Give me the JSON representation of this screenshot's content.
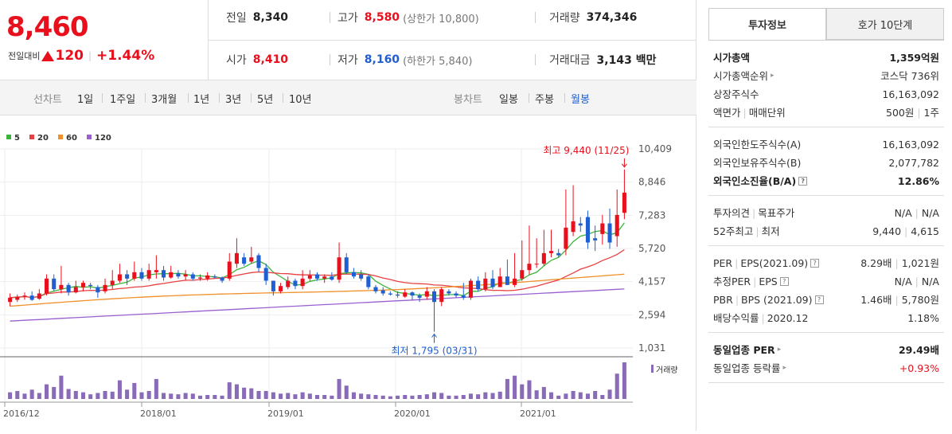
{
  "quote": {
    "price": "8,460",
    "change_label": "전일대비",
    "change_amount": "120",
    "change_pct": "+1.44%",
    "prev_close_label": "전일",
    "prev_close": "8,340",
    "high_label": "고가",
    "high": "8,580",
    "upper_limit": "(상한가 10,800)",
    "volume_label": "거래량",
    "volume": "374,346",
    "open_label": "시가",
    "open": "8,410",
    "low_label": "저가",
    "low": "8,160",
    "lower_limit": "(하한가 5,840)",
    "amount_label": "거래대금",
    "amount": "3,143 백만"
  },
  "period_bar": {
    "line_label": "선차트",
    "line_periods": [
      "1일",
      "1주일",
      "3개월",
      "1년",
      "3년",
      "5년",
      "10년"
    ],
    "candle_label": "봉차트",
    "candle_periods": [
      "일봉",
      "주봉",
      "월봉"
    ],
    "active_candle": "월봉"
  },
  "chart_data": {
    "type": "candlestick",
    "legend": [
      {
        "name": "5",
        "color": "#3cb43c"
      },
      {
        "name": "20",
        "color": "#e84040"
      },
      {
        "name": "60",
        "color": "#f0902a"
      },
      {
        "name": "120",
        "color": "#9a5fd0"
      }
    ],
    "y_ticks": [
      "10,409",
      "8,846",
      "7,283",
      "5,720",
      "4,157",
      "2,594",
      "1,031"
    ],
    "ylim": [
      1031,
      10409
    ],
    "x_ticks": [
      "2016/12",
      "2018/01",
      "2019/01",
      "2020/01",
      "2021/01"
    ],
    "max_note": "최고 9,440 (11/25)",
    "min_note": "최저 1,795 (03/31)",
    "volume_label": "거래량",
    "candles": [
      {
        "o": 3200,
        "c": 3400,
        "h": 3600,
        "l": 3000,
        "v": 0.1
      },
      {
        "o": 3300,
        "c": 3450,
        "h": 3550,
        "l": 3200,
        "v": 0.12
      },
      {
        "o": 3450,
        "c": 3500,
        "h": 3650,
        "l": 3300,
        "v": 0.08
      },
      {
        "o": 3500,
        "c": 3300,
        "h": 3700,
        "l": 3250,
        "v": 0.14
      },
      {
        "o": 3350,
        "c": 3600,
        "h": 3800,
        "l": 3300,
        "v": 0.09
      },
      {
        "o": 3600,
        "c": 4300,
        "h": 4500,
        "l": 3500,
        "v": 0.22
      },
      {
        "o": 4300,
        "c": 3800,
        "h": 4500,
        "l": 3700,
        "v": 0.18
      },
      {
        "o": 3800,
        "c": 4000,
        "h": 4900,
        "l": 3600,
        "v": 0.35
      },
      {
        "o": 4000,
        "c": 3650,
        "h": 4100,
        "l": 3500,
        "v": 0.15
      },
      {
        "o": 3650,
        "c": 3900,
        "h": 4200,
        "l": 3600,
        "v": 0.12
      },
      {
        "o": 3900,
        "c": 4100,
        "h": 4200,
        "l": 3700,
        "v": 0.1
      },
      {
        "o": 4000,
        "c": 3950,
        "h": 4100,
        "l": 3800,
        "v": 0.07
      },
      {
        "o": 3900,
        "c": 3650,
        "h": 4000,
        "l": 3400,
        "v": 0.09
      },
      {
        "o": 3700,
        "c": 4000,
        "h": 4300,
        "l": 3600,
        "v": 0.12
      },
      {
        "o": 4000,
        "c": 4200,
        "h": 4700,
        "l": 3800,
        "v": 0.11
      },
      {
        "o": 4200,
        "c": 4500,
        "h": 5000,
        "l": 4100,
        "v": 0.28
      },
      {
        "o": 4500,
        "c": 4300,
        "h": 4700,
        "l": 4000,
        "v": 0.14
      },
      {
        "o": 4300,
        "c": 4600,
        "h": 5100,
        "l": 4200,
        "v": 0.24
      },
      {
        "o": 4600,
        "c": 4300,
        "h": 4800,
        "l": 4200,
        "v": 0.1
      },
      {
        "o": 4300,
        "c": 4700,
        "h": 5000,
        "l": 4200,
        "v": 0.12
      },
      {
        "o": 4600,
        "c": 4700,
        "h": 5400,
        "l": 4300,
        "v": 0.3
      },
      {
        "o": 4700,
        "c": 4350,
        "h": 4900,
        "l": 4200,
        "v": 0.09
      },
      {
        "o": 4350,
        "c": 4600,
        "h": 4900,
        "l": 4300,
        "v": 0.08
      },
      {
        "o": 4550,
        "c": 4400,
        "h": 4700,
        "l": 4300,
        "v": 0.07
      },
      {
        "o": 4400,
        "c": 4500,
        "h": 4700,
        "l": 4200,
        "v": 0.09
      },
      {
        "o": 4500,
        "c": 4300,
        "h": 4600,
        "l": 4200,
        "v": 0.08
      },
      {
        "o": 4300,
        "c": 4350,
        "h": 4500,
        "l": 4200,
        "v": 0.05
      },
      {
        "o": 4300,
        "c": 4450,
        "h": 4600,
        "l": 4200,
        "v": 0.06
      },
      {
        "o": 4400,
        "c": 4350,
        "h": 4500,
        "l": 4300,
        "v": 0.06
      },
      {
        "o": 4350,
        "c": 4200,
        "h": 4400,
        "l": 4100,
        "v": 0.05
      },
      {
        "o": 4300,
        "c": 5100,
        "h": 5500,
        "l": 4200,
        "v": 0.25
      },
      {
        "o": 5000,
        "c": 5500,
        "h": 6200,
        "l": 4800,
        "v": 0.22
      },
      {
        "o": 5300,
        "c": 5000,
        "h": 5500,
        "l": 4900,
        "v": 0.17
      },
      {
        "o": 5100,
        "c": 5300,
        "h": 5800,
        "l": 5000,
        "v": 0.16
      },
      {
        "o": 5400,
        "c": 4800,
        "h": 5500,
        "l": 4600,
        "v": 0.12
      },
      {
        "o": 4800,
        "c": 4200,
        "h": 5000,
        "l": 4000,
        "v": 0.12
      },
      {
        "o": 4200,
        "c": 3700,
        "h": 4200,
        "l": 3500,
        "v": 0.1
      },
      {
        "o": 3700,
        "c": 3950,
        "h": 4100,
        "l": 3600,
        "v": 0.08
      },
      {
        "o": 3900,
        "c": 4200,
        "h": 4400,
        "l": 3800,
        "v": 0.09
      },
      {
        "o": 4200,
        "c": 3950,
        "h": 4300,
        "l": 3800,
        "v": 0.07
      },
      {
        "o": 3950,
        "c": 4300,
        "h": 4700,
        "l": 3800,
        "v": 0.1
      },
      {
        "o": 4300,
        "c": 4450,
        "h": 4700,
        "l": 4200,
        "v": 0.08
      },
      {
        "o": 4500,
        "c": 4300,
        "h": 4600,
        "l": 4200,
        "v": 0.06
      },
      {
        "o": 4300,
        "c": 4400,
        "h": 4500,
        "l": 4100,
        "v": 0.06
      },
      {
        "o": 4400,
        "c": 4250,
        "h": 4600,
        "l": 4200,
        "v": 0.05
      },
      {
        "o": 4250,
        "c": 5300,
        "h": 6000,
        "l": 4100,
        "v": 0.3
      },
      {
        "o": 5300,
        "c": 4600,
        "h": 5500,
        "l": 4500,
        "v": 0.2
      },
      {
        "o": 4600,
        "c": 4400,
        "h": 4800,
        "l": 4300,
        "v": 0.1
      },
      {
        "o": 4500,
        "c": 4300,
        "h": 4700,
        "l": 4200,
        "v": 0.08
      },
      {
        "o": 4400,
        "c": 3900,
        "h": 4500,
        "l": 3800,
        "v": 0.07
      },
      {
        "o": 3900,
        "c": 3700,
        "h": 4000,
        "l": 3600,
        "v": 0.06
      },
      {
        "o": 3750,
        "c": 3600,
        "h": 3900,
        "l": 3500,
        "v": 0.05
      },
      {
        "o": 3600,
        "c": 3550,
        "h": 3700,
        "l": 3500,
        "v": 0.04
      },
      {
        "o": 3550,
        "c": 3500,
        "h": 3700,
        "l": 3400,
        "v": 0.05
      },
      {
        "o": 3450,
        "c": 3650,
        "h": 3800,
        "l": 3400,
        "v": 0.06
      },
      {
        "o": 3650,
        "c": 3500,
        "h": 3700,
        "l": 3300,
        "v": 0.05
      },
      {
        "o": 3500,
        "c": 3400,
        "h": 3600,
        "l": 3200,
        "v": 0.06
      },
      {
        "o": 3450,
        "c": 3700,
        "h": 3900,
        "l": 3300,
        "v": 0.07
      },
      {
        "o": 3700,
        "c": 3200,
        "h": 3800,
        "l": 1795,
        "v": 0.1
      },
      {
        "o": 3200,
        "c": 3800,
        "h": 3900,
        "l": 3000,
        "v": 0.09
      },
      {
        "o": 3700,
        "c": 3600,
        "h": 3800,
        "l": 3500,
        "v": 0.05
      },
      {
        "o": 3600,
        "c": 3500,
        "h": 3700,
        "l": 3400,
        "v": 0.05
      },
      {
        "o": 3500,
        "c": 3400,
        "h": 4100,
        "l": 3300,
        "v": 0.06
      },
      {
        "o": 3400,
        "c": 4200,
        "h": 4300,
        "l": 3300,
        "v": 0.08
      },
      {
        "o": 4200,
        "c": 3800,
        "h": 4400,
        "l": 3700,
        "v": 0.07
      },
      {
        "o": 3800,
        "c": 4300,
        "h": 4600,
        "l": 3700,
        "v": 0.1
      },
      {
        "o": 4300,
        "c": 3900,
        "h": 4700,
        "l": 3800,
        "v": 0.09
      },
      {
        "o": 3900,
        "c": 4400,
        "h": 4800,
        "l": 3900,
        "v": 0.11
      },
      {
        "o": 4400,
        "c": 4000,
        "h": 5200,
        "l": 4000,
        "v": 0.3
      },
      {
        "o": 4000,
        "c": 4300,
        "h": 5500,
        "l": 3900,
        "v": 0.35
      },
      {
        "o": 4300,
        "c": 4700,
        "h": 6100,
        "l": 4200,
        "v": 0.22
      },
      {
        "o": 4700,
        "c": 5000,
        "h": 6800,
        "l": 4500,
        "v": 0.28
      },
      {
        "o": 5000,
        "c": 5000,
        "h": 6200,
        "l": 4800,
        "v": 0.13
      },
      {
        "o": 5000,
        "c": 5500,
        "h": 6600,
        "l": 4900,
        "v": 0.18
      },
      {
        "o": 5500,
        "c": 5600,
        "h": 6600,
        "l": 5300,
        "v": 0.1
      },
      {
        "o": 5500,
        "c": 5400,
        "h": 5700,
        "l": 5300,
        "v": 0.05
      },
      {
        "o": 5700,
        "c": 6700,
        "h": 8500,
        "l": 5400,
        "v": 0.08
      },
      {
        "o": 6500,
        "c": 7000,
        "h": 8700,
        "l": 6300,
        "v": 0.12
      },
      {
        "o": 6900,
        "c": 6800,
        "h": 7200,
        "l": 6500,
        "v": 0.1
      },
      {
        "o": 7200,
        "c": 6000,
        "h": 7500,
        "l": 5700,
        "v": 0.08
      },
      {
        "o": 6200,
        "c": 6100,
        "h": 6800,
        "l": 5600,
        "v": 0.12
      },
      {
        "o": 6400,
        "c": 6900,
        "h": 7300,
        "l": 5900,
        "v": 0.06
      },
      {
        "o": 6900,
        "c": 6000,
        "h": 7600,
        "l": 5700,
        "v": 0.14
      },
      {
        "o": 6300,
        "c": 7300,
        "h": 8500,
        "l": 5800,
        "v": 0.38
      },
      {
        "o": 7400,
        "c": 8350,
        "h": 9440,
        "l": 7100,
        "v": 0.55
      }
    ]
  },
  "invest": {
    "tabs": [
      "투자정보",
      "호가 10단계"
    ],
    "group1": [
      {
        "k": "시가총액",
        "v": "1,359억원",
        "bold": true
      },
      {
        "k": "시가총액순위",
        "v": "코스닥 736위",
        "arrow": true
      },
      {
        "k": "상장주식수",
        "v": "16,163,092"
      },
      {
        "k": "액면가",
        "k2": "매매단위",
        "v": "500원",
        "v2": "1주"
      }
    ],
    "group2": [
      {
        "k": "외국인한도주식수(A)",
        "v": "16,163,092"
      },
      {
        "k": "외국인보유주식수(B)",
        "v": "2,077,782"
      },
      {
        "k": "외국인소진율(B/A)",
        "v": "12.86%",
        "bold": true,
        "q": true
      }
    ],
    "group3": [
      {
        "k": "투자의견",
        "k2": "목표주가",
        "v": "N/A",
        "v2": "N/A"
      },
      {
        "k": "52주최고",
        "k2": "최저",
        "v": "9,440",
        "v2": "4,615"
      }
    ],
    "group4": [
      {
        "k": "PER",
        "k2": "EPS(2021.09)",
        "q": true,
        "v": "8.29배",
        "v2": "1,021원"
      },
      {
        "k": "추정PER",
        "k2": "EPS",
        "q": true,
        "v": "N/A",
        "v2": "N/A"
      },
      {
        "k": "PBR",
        "k2": "BPS (2021.09)",
        "q": true,
        "v": "1.46배",
        "v2": "5,780원"
      },
      {
        "k": "배당수익률",
        "k2": "2020.12",
        "v": "1.18%"
      }
    ],
    "group5": [
      {
        "k": "동일업종 PER",
        "v": "29.49배",
        "bold": true,
        "arrow": true
      },
      {
        "k": "동일업종 등락률",
        "v": "+0.93%",
        "red": true,
        "arrow": true
      }
    ]
  }
}
